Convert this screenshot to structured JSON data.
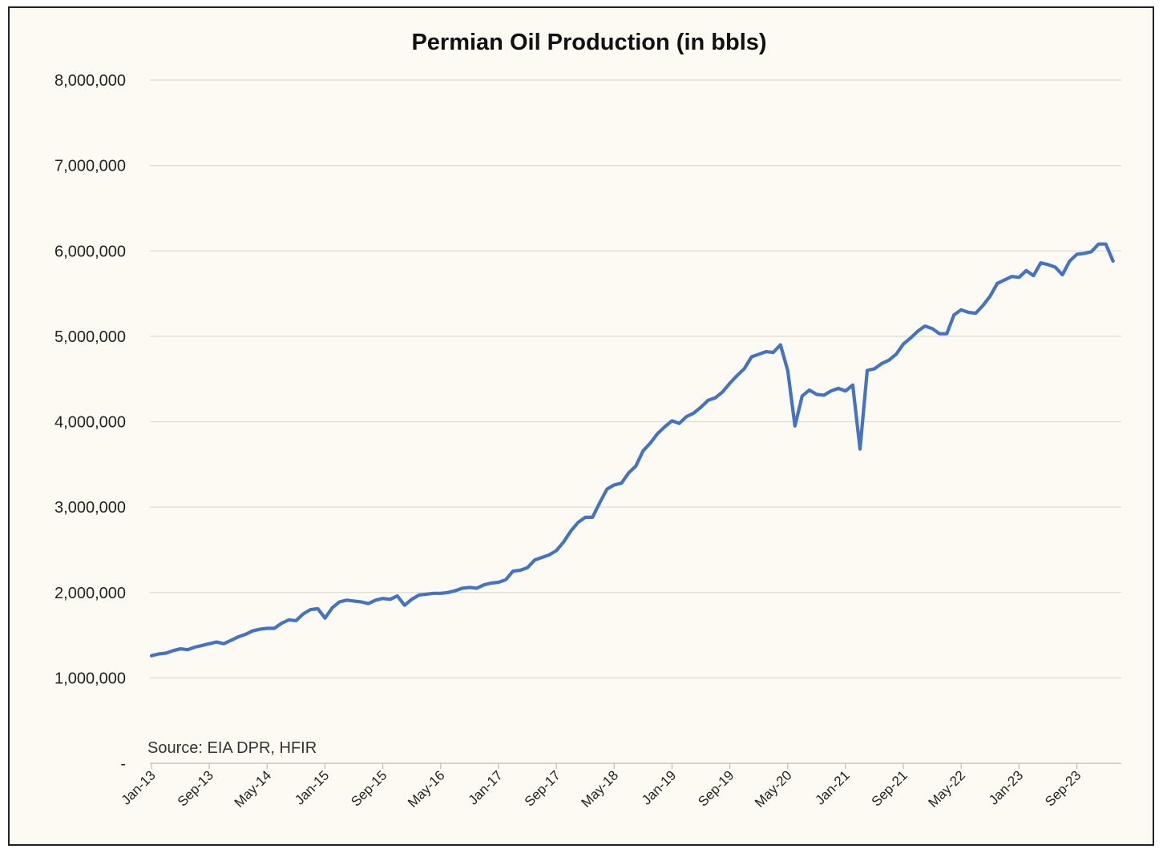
{
  "chart_data": {
    "type": "line",
    "title": "Permian Oil Production (in bbls)",
    "xlabel": "",
    "ylabel": "",
    "ylim": [
      0,
      8000000
    ],
    "grid": true,
    "legend": "none",
    "source_note": "Source: EIA DPR, HFIR",
    "color": "#4472c4",
    "y_ticks": [
      {
        "value": 0,
        "label": "-"
      },
      {
        "value": 1000000,
        "label": "1,000,000"
      },
      {
        "value": 2000000,
        "label": "2,000,000"
      },
      {
        "value": 3000000,
        "label": "3,000,000"
      },
      {
        "value": 4000000,
        "label": "4,000,000"
      },
      {
        "value": 5000000,
        "label": "5,000,000"
      },
      {
        "value": 6000000,
        "label": "6,000,000"
      },
      {
        "value": 7000000,
        "label": "7,000,000"
      },
      {
        "value": 8000000,
        "label": "8,000,000"
      }
    ],
    "x_tick_labels": [
      "Jan-13",
      "Sep-13",
      "May-14",
      "Jan-15",
      "Sep-15",
      "May-16",
      "Jan-17",
      "Sep-17",
      "May-18",
      "Jan-19",
      "Sep-19",
      "May-20",
      "Jan-21",
      "Sep-21",
      "May-22",
      "Jan-23",
      "Sep-23"
    ],
    "x_tick_every_months": 8,
    "start_month": "Jan-13",
    "series": [
      {
        "values": [
          1260000,
          1280000,
          1290000,
          1320000,
          1340000,
          1330000,
          1360000,
          1380000,
          1400000,
          1420000,
          1400000,
          1440000,
          1480000,
          1510000,
          1550000,
          1570000,
          1580000,
          1580000,
          1640000,
          1680000,
          1670000,
          1750000,
          1800000,
          1810000,
          1700000,
          1820000,
          1890000,
          1910000,
          1900000,
          1890000,
          1870000,
          1910000,
          1930000,
          1920000,
          1960000,
          1850000,
          1920000,
          1970000,
          1980000,
          1990000,
          1990000,
          2000000,
          2020000,
          2050000,
          2060000,
          2050000,
          2090000,
          2110000,
          2120000,
          2150000,
          2250000,
          2260000,
          2290000,
          2380000,
          2410000,
          2440000,
          2490000,
          2590000,
          2720000,
          2820000,
          2880000,
          2880000,
          3050000,
          3210000,
          3260000,
          3280000,
          3400000,
          3480000,
          3660000,
          3750000,
          3860000,
          3940000,
          4010000,
          3980000,
          4060000,
          4100000,
          4170000,
          4250000,
          4280000,
          4350000,
          4450000,
          4540000,
          4620000,
          4760000,
          4790000,
          4820000,
          4810000,
          4900000,
          4600000,
          3950000,
          4300000,
          4370000,
          4320000,
          4310000,
          4360000,
          4390000,
          4360000,
          4430000,
          3680000,
          4600000,
          4620000,
          4680000,
          4720000,
          4790000,
          4910000,
          4980000,
          5060000,
          5120000,
          5090000,
          5030000,
          5030000,
          5250000,
          5310000,
          5280000,
          5270000,
          5360000,
          5470000,
          5620000,
          5660000,
          5700000,
          5690000,
          5770000,
          5710000,
          5860000,
          5840000,
          5810000,
          5720000,
          5880000,
          5960000,
          5970000,
          5990000,
          6080000,
          6080000,
          5880000
        ]
      }
    ]
  }
}
